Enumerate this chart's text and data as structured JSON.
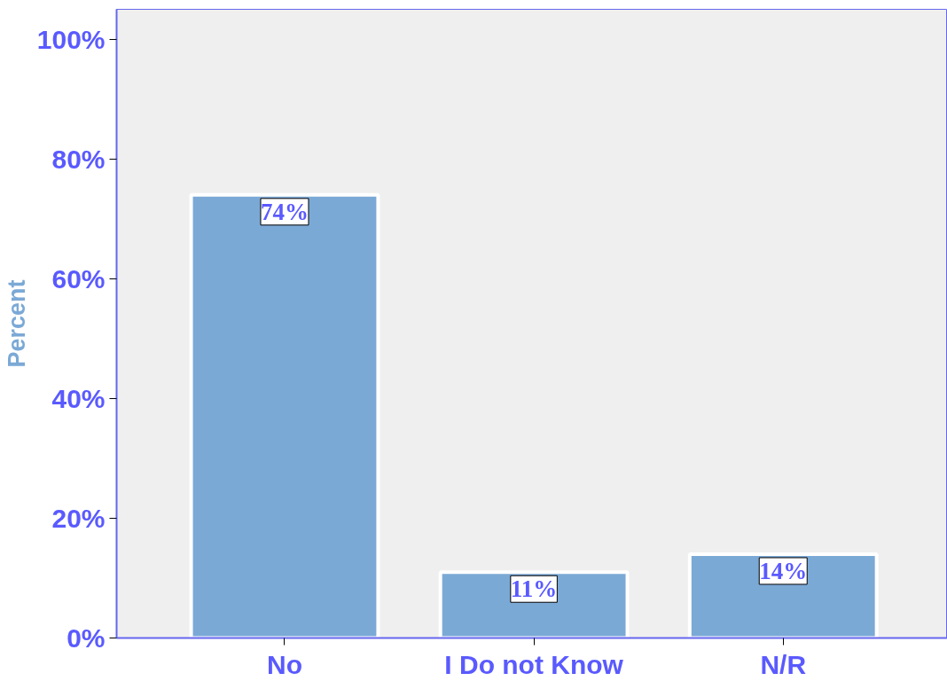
{
  "chart_data": {
    "type": "bar",
    "ylabel": "Percent",
    "categories": [
      "No",
      "I Do not Know",
      "N/R"
    ],
    "values": [
      74,
      11,
      14
    ],
    "value_labels": [
      "74%",
      "11%",
      "14%"
    ],
    "color": "#7ba9d6",
    "ylim": [
      0,
      105
    ],
    "yticks": [
      {
        "value": 0,
        "label": "0%"
      },
      {
        "value": 20,
        "label": "20%"
      },
      {
        "value": 40,
        "label": "40%"
      },
      {
        "value": 60,
        "label": "60%"
      },
      {
        "value": 80,
        "label": "80%"
      },
      {
        "value": 100,
        "label": "100%"
      }
    ],
    "grid": false
  }
}
